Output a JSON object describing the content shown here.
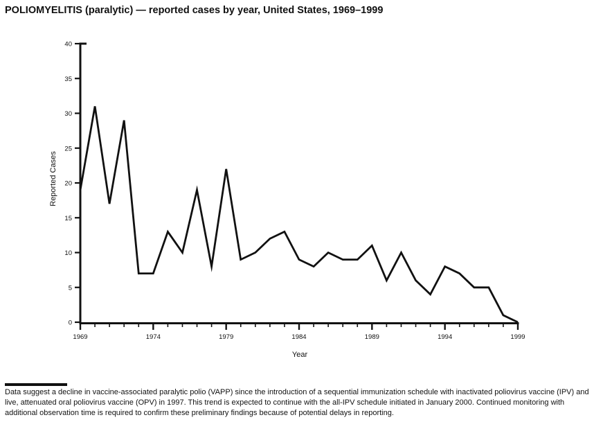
{
  "title": "POLIOMYELITIS (paralytic) — reported cases by year, United States, 1969–1999",
  "chart_data": {
    "type": "line",
    "title": "POLIOMYELITIS (paralytic) — reported cases by year, United States, 1969–1999",
    "xlabel": "Year",
    "ylabel": "Reported Cases",
    "x": [
      1969,
      1970,
      1971,
      1972,
      1973,
      1974,
      1975,
      1976,
      1977,
      1978,
      1979,
      1980,
      1981,
      1982,
      1983,
      1984,
      1985,
      1986,
      1987,
      1988,
      1989,
      1990,
      1991,
      1992,
      1993,
      1994,
      1995,
      1996,
      1997,
      1998,
      1999
    ],
    "values": [
      19,
      31,
      17,
      29,
      7,
      7,
      13,
      10,
      19,
      8,
      22,
      9,
      10,
      12,
      13,
      9,
      8,
      10,
      9,
      9,
      11,
      6,
      10,
      6,
      4,
      8,
      7,
      5,
      5,
      1,
      0
    ],
    "ylim": [
      0,
      40
    ],
    "y_ticks": [
      0,
      5,
      10,
      15,
      20,
      25,
      30,
      35,
      40
    ],
    "x_tick_labels": [
      1969,
      1974,
      1979,
      1984,
      1989,
      1994,
      1999
    ],
    "line_color": "#111111",
    "axis_color": "#111111",
    "grid": "off",
    "legend": "none"
  },
  "footnote": {
    "text": "Data suggest a decline in vaccine-associated paralytic polio (VAPP) since the introduction of a sequential immunization schedule with inactivated poliovirus vaccine (IPV) and live, attenuated oral poliovirus vaccine (OPV) in 1997. This trend is expected to continue with the all-IPV schedule initiated in January 2000. Continued monitoring with additional observation time is required to confirm these preliminary findings because of potential delays in reporting."
  }
}
